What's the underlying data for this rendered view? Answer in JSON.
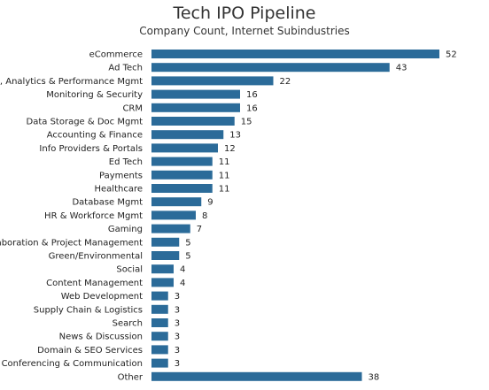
{
  "chart_data": {
    "type": "bar",
    "orientation": "horizontal",
    "title": "Tech IPO Pipeline",
    "subtitle": "Company Count, Internet Subindustries",
    "xlabel": "",
    "ylabel": "",
    "xlim": [
      0,
      52
    ],
    "grid": false,
    "legend": "none",
    "bar_color": "#2b6b99",
    "categories": [
      "eCommerce",
      "Ad Tech",
      "BI, Analytics & Performance Mgmt",
      "Monitoring & Security",
      "CRM",
      "Data Storage & Doc Mgmt",
      "Accounting & Finance",
      "Info Providers & Portals",
      "Ed Tech",
      "Payments",
      "Healthcare",
      "Database Mgmt",
      "HR & Workforce Mgmt",
      "Gaming",
      "Collaboration & Project Management",
      "Green/Environmental",
      "Social",
      "Content Management",
      "Web Development",
      "Supply Chain & Logistics",
      "Search",
      "News & Discussion",
      "Domain & SEO Services",
      "Conferencing & Communication",
      "Other"
    ],
    "values": [
      52,
      43,
      22,
      16,
      16,
      15,
      13,
      12,
      11,
      11,
      11,
      9,
      8,
      7,
      5,
      5,
      4,
      4,
      3,
      3,
      3,
      3,
      3,
      3,
      38
    ]
  }
}
